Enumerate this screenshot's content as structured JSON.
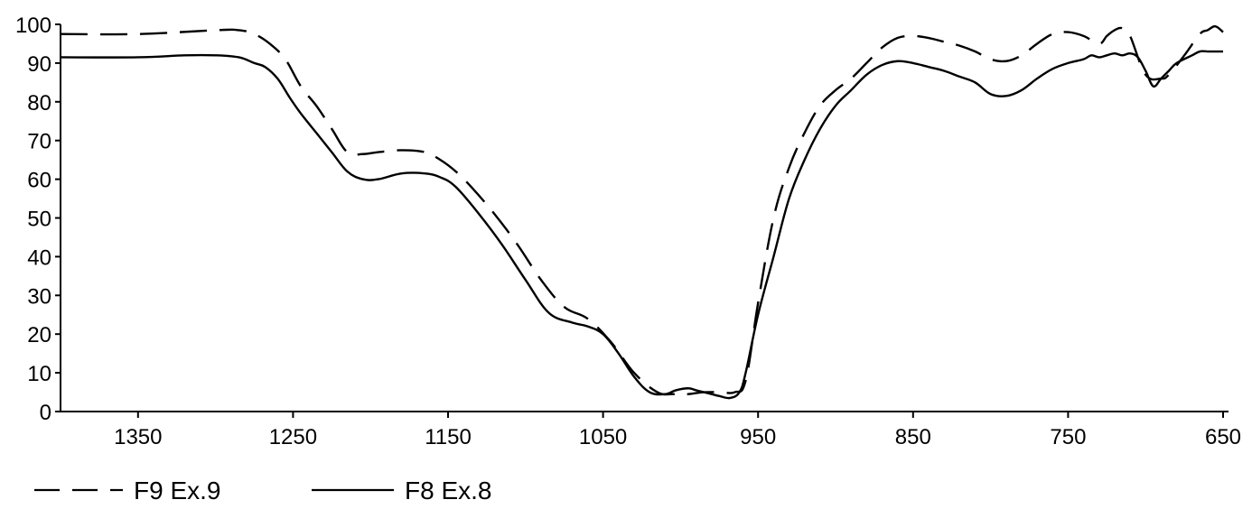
{
  "chart_data": {
    "type": "line",
    "title": "",
    "xlabel": "",
    "ylabel": "",
    "xlim": [
      1400,
      650
    ],
    "x_reversed": true,
    "ylim": [
      0,
      100
    ],
    "grid": false,
    "legend_position": "bottom-left",
    "x_ticks": [
      "1350",
      "1250",
      "1150",
      "1050",
      "950",
      "850",
      "750",
      "650"
    ],
    "y_ticks": [
      "0",
      "10",
      "20",
      "30",
      "40",
      "50",
      "60",
      "70",
      "80",
      "90",
      "100"
    ],
    "series": [
      {
        "name": "F9 Ex.9",
        "style": "dashed",
        "color": "#000000",
        "x": [
          1400,
          1350,
          1300,
          1285,
          1275,
          1265,
          1255,
          1245,
          1235,
          1225,
          1215,
          1205,
          1195,
          1180,
          1165,
          1155,
          1145,
          1135,
          1120,
          1105,
          1090,
          1075,
          1060,
          1045,
          1030,
          1015,
          1005,
          995,
          985,
          975,
          965,
          958,
          950,
          940,
          930,
          920,
          910,
          900,
          890,
          880,
          870,
          860,
          850,
          840,
          830,
          820,
          810,
          800,
          790,
          780,
          770,
          760,
          750,
          740,
          730,
          725,
          720,
          715,
          710,
          700,
          690,
          685,
          675,
          665,
          660,
          655,
          650
        ],
        "y": [
          97.5,
          97.5,
          98.5,
          98.5,
          97.5,
          95,
          91,
          84,
          79,
          73,
          67,
          66.5,
          67,
          67.5,
          67,
          65,
          62,
          58,
          51,
          43,
          34,
          27,
          24,
          18,
          10,
          5,
          4.5,
          4.5,
          5,
          5,
          5,
          8,
          28,
          50,
          63,
          72,
          79,
          83,
          86,
          90,
          94,
          96.5,
          97,
          96.5,
          95.5,
          94.5,
          93,
          91,
          90.5,
          92,
          95,
          97.5,
          98,
          97,
          95,
          97,
          98.5,
          99,
          97,
          87,
          86,
          87,
          92,
          97.5,
          98.5,
          99.5,
          98
        ]
      },
      {
        "name": "F8 Ex.8",
        "style": "solid",
        "color": "#000000",
        "x": [
          1400,
          1350,
          1320,
          1300,
          1285,
          1275,
          1268,
          1260,
          1252,
          1245,
          1235,
          1225,
          1215,
          1205,
          1195,
          1180,
          1165,
          1155,
          1145,
          1130,
          1115,
          1100,
          1085,
          1070,
          1060,
          1050,
          1040,
          1030,
          1020,
          1010,
          1003,
          995,
          990,
          985,
          980,
          975,
          968,
          962,
          958,
          950,
          940,
          930,
          920,
          910,
          900,
          890,
          880,
          870,
          860,
          850,
          840,
          830,
          820,
          810,
          800,
          790,
          780,
          770,
          760,
          750,
          740,
          735,
          730,
          725,
          720,
          715,
          710,
          705,
          700,
          695,
          690,
          685,
          680,
          670,
          665,
          660,
          655,
          650
        ],
        "y": [
          91.5,
          91.5,
          92,
          92,
          91.5,
          90,
          89,
          86,
          81,
          77,
          72,
          67,
          62,
          60,
          60,
          61.5,
          61.5,
          60.5,
          58,
          51,
          43,
          34,
          25.5,
          23,
          22,
          20,
          15,
          9,
          5,
          4.5,
          5.5,
          6,
          5.5,
          5,
          4.5,
          4,
          3.5,
          5,
          10,
          25,
          40,
          55,
          65,
          73,
          79,
          83,
          87,
          89.5,
          90.5,
          90,
          89,
          88,
          86.5,
          85,
          82,
          81.5,
          83,
          86,
          88.5,
          90,
          91,
          92,
          91.5,
          92,
          92.5,
          92,
          92.5,
          91.5,
          88,
          84,
          86,
          88,
          90,
          92,
          93,
          93,
          93,
          93
        ]
      }
    ]
  }
}
